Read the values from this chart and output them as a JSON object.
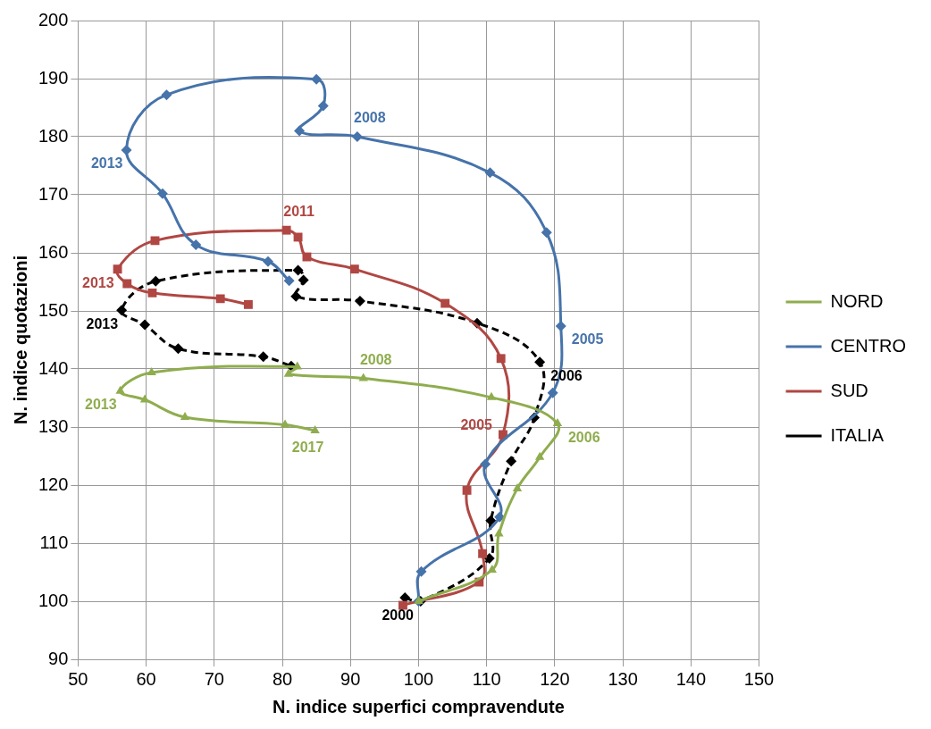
{
  "chart_data": {
    "type": "line",
    "xlabel": "N. indice superfici compravendute",
    "ylabel": "N. indice quotazioni",
    "xlim": [
      50,
      150
    ],
    "xticks": [
      50,
      60,
      70,
      80,
      90,
      100,
      110,
      120,
      130,
      140,
      150
    ],
    "ylim": [
      90,
      200
    ],
    "yticks": [
      90,
      100,
      110,
      120,
      130,
      140,
      150,
      160,
      170,
      180,
      190,
      200
    ],
    "grid": true,
    "legend": "right",
    "series": [
      {
        "name": "NORD",
        "color": "#8fad4e",
        "marker": "triangle",
        "line_style": "solid",
        "x": [
          100,
          110.8,
          111.8,
          114.5,
          117.8,
          120.4,
          110.7,
          91.9,
          80.9,
          82.2,
          60.8,
          56.2,
          59.8,
          65.7,
          80.4,
          84.8
        ],
        "values": [
          100,
          105.4,
          111.6,
          119.4,
          124.8,
          130.6,
          135.1,
          138.4,
          139.1,
          140.4,
          139.4,
          136.2,
          134.7,
          131.7,
          130.4,
          129.4
        ]
      },
      {
        "name": "CENTRO",
        "color": "#4673aa",
        "marker": "diamond",
        "line_style": "solid",
        "x": [
          100,
          100.4,
          111.9,
          109.8,
          119.7,
          120.9,
          118.8,
          110.5,
          91,
          82.5,
          86,
          85,
          63,
          57.1,
          62.4,
          67.3,
          77.9,
          81
        ],
        "values": [
          100,
          105.1,
          114.5,
          123.6,
          135.9,
          147.4,
          163.5,
          173.8,
          180,
          181,
          185.3,
          189.9,
          187.2,
          177.7,
          170.2,
          161.4,
          158.5,
          155.2
        ]
      },
      {
        "name": "SUD",
        "color": "#b04743",
        "marker": "square",
        "line_style": "solid",
        "x": [
          97.7,
          108.9,
          109.4,
          107.1,
          112.4,
          112.1,
          103.9,
          90.6,
          83.6,
          82.3,
          80.6,
          61.3,
          55.8,
          57.2,
          60.9,
          70.9,
          75
        ],
        "values": [
          99.3,
          103.3,
          108.2,
          119.1,
          128.7,
          141.8,
          151.3,
          157.2,
          159.3,
          162.7,
          163.9,
          162.1,
          157.2,
          154.7,
          153.1,
          152.1,
          151.1
        ]
      },
      {
        "name": "ITALIA",
        "color": "#000000",
        "marker": "diamond",
        "line_style": "dashed",
        "x": [
          98,
          100.3,
          110.4,
          110.6,
          113.6,
          117,
          117.8,
          108.6,
          91.4,
          82,
          83.1,
          82.3,
          61.4,
          56.4,
          59.8,
          64.7,
          77.2,
          81.3
        ],
        "values": [
          100.6,
          100,
          107.4,
          113.9,
          124.1,
          131.6,
          141.2,
          147.9,
          151.7,
          152.5,
          155.3,
          157,
          155.1,
          150.1,
          147.6,
          143.5,
          142.1,
          140.5
        ]
      }
    ],
    "annotations": [
      {
        "text": "2008",
        "x": 91.9,
        "y": 138.4
      },
      {
        "text": "2013",
        "x": 56.2,
        "y": 136.2
      },
      {
        "text": "2006",
        "x": 120.4,
        "y": 130.6
      },
      {
        "text": "2017",
        "x": 84.8,
        "y": 129.4
      },
      {
        "text": "2008",
        "x": 91,
        "y": 180
      },
      {
        "text": "2013",
        "x": 57.1,
        "y": 177.7
      },
      {
        "text": "2005",
        "x": 120.9,
        "y": 147.4
      },
      {
        "text": "2011",
        "x": 80.6,
        "y": 163.9
      },
      {
        "text": "2013",
        "x": 55.8,
        "y": 157.2
      },
      {
        "text": "2005",
        "x": 112.4,
        "y": 128.7
      },
      {
        "text": "2006",
        "x": 117.8,
        "y": 141.2
      },
      {
        "text": "2013",
        "x": 56.4,
        "y": 150.1
      },
      {
        "text": "2000",
        "x": 98,
        "y": 100.6
      }
    ]
  }
}
